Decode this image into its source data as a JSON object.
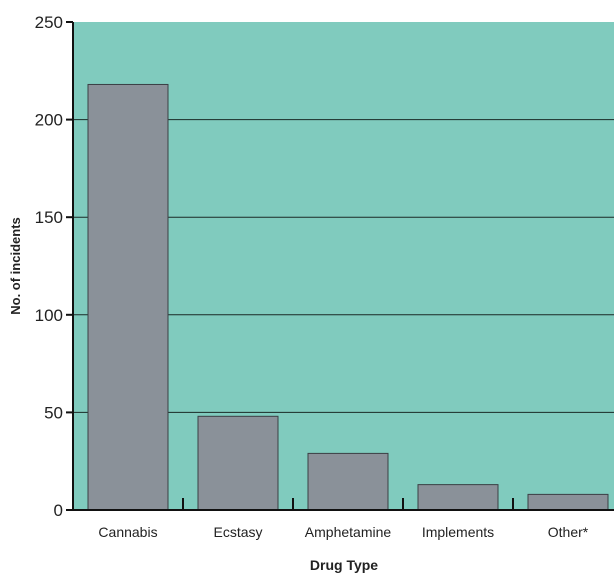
{
  "chart_data": {
    "type": "bar",
    "title": "",
    "xlabel": "Drug Type",
    "ylabel": "No. of incidents",
    "categories": [
      "Cannabis",
      "Ecstasy",
      "Amphetamine",
      "Implements",
      "Other*"
    ],
    "values": [
      218,
      48,
      29,
      13,
      8
    ],
    "ylim": [
      0,
      250
    ],
    "yticks": [
      0,
      50,
      100,
      150,
      200,
      250
    ],
    "grid": true,
    "legend": "none",
    "colors": {
      "plot_background": "#80CBBE",
      "bar_fill": "#8A9199",
      "bar_stroke": "#3a3f44",
      "gridline": "#1a2a26",
      "axis": "#111111"
    }
  }
}
